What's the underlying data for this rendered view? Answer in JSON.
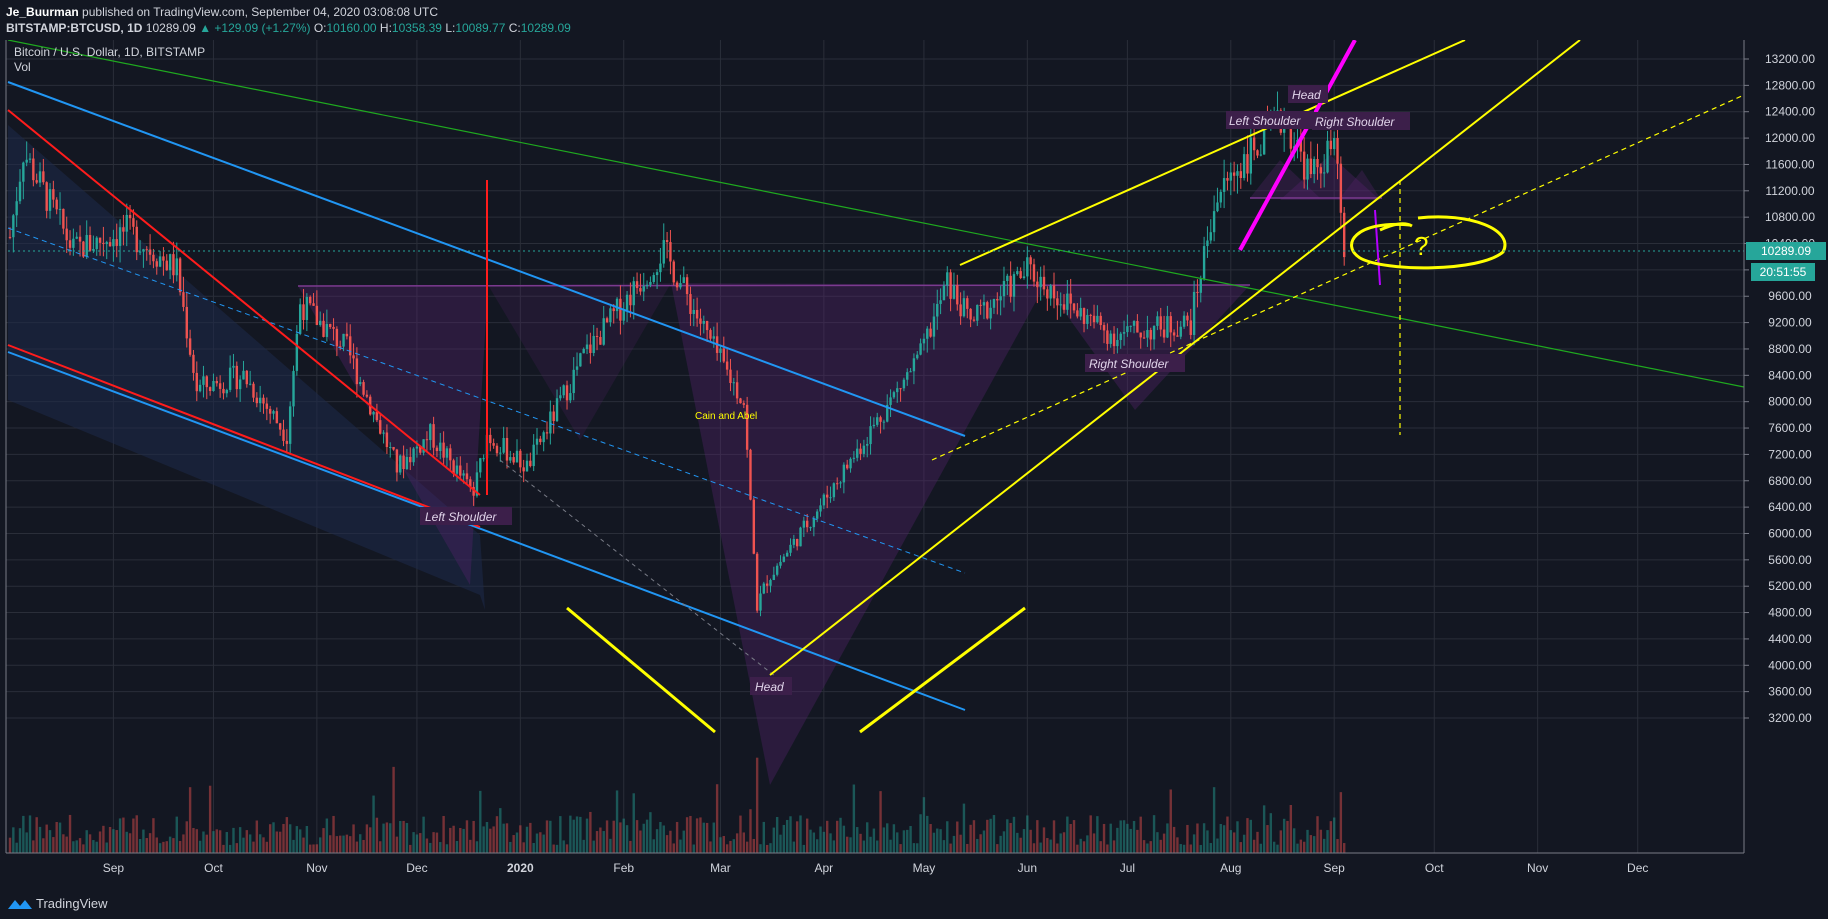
{
  "header": {
    "author": "Je_Buurman",
    "published_text": "published on TradingView.com, September 04, 2020 03:08:08 UTC",
    "symbol": "BITSTAMP:BTCUSD, 1D",
    "last": "10289.09",
    "change": "▲ +129.09 (+1.27%)",
    "o_label": "O:",
    "o": "10160.00",
    "h_label": "H:",
    "h": "10358.39",
    "l_label": "L:",
    "l": "10089.77",
    "c_label": "C:",
    "c": "10289.09"
  },
  "legend": {
    "title": "Bitcoin / U.S. Dollar, 1D, BITSTAMP",
    "vol": "Vol"
  },
  "price_badge": "10289.09",
  "countdown_badge": "20:51:55",
  "footer": {
    "brand": "TradingView"
  },
  "colors": {
    "up": "#26a69a",
    "down": "#ef5350",
    "bg": "#131722",
    "grid": "#2a2e39",
    "yellow": "#ffff00",
    "magenta": "#ff00ff",
    "blue": "#2196f3",
    "red": "#ff0000",
    "green": "#1faa1f"
  },
  "annotations": {
    "left_shoulder_1": "Left Shoulder",
    "head_1": "Head",
    "right_shoulder_1": "Right Shoulder",
    "cain_abel": "Cain and Abel",
    "left_shoulder_2": "Left Shoulder",
    "head_2": "Head",
    "right_shoulder_2": "Right Shoulder",
    "question": "?"
  },
  "chart_data": {
    "type": "candlestick",
    "title": "Bitcoin / U.S. Dollar, 1D, BITSTAMP",
    "y_ticks": [
      13200,
      12800,
      12400,
      12000,
      11600,
      11200,
      10800,
      10400,
      10000,
      9600,
      9200,
      8800,
      8400,
      8000,
      7600,
      7200,
      6800,
      6400,
      6000,
      5600,
      5200,
      4800,
      4400,
      4000,
      3600,
      3200
    ],
    "y_tick_labels": [
      "13200.00",
      "12800.00",
      "12400.00",
      "12000.00",
      "11600.00",
      "11200.00",
      "10800.00",
      "10400.00",
      "10000.00",
      "9600.00",
      "9200.00",
      "8800.00",
      "8400.00",
      "8000.00",
      "7600.00",
      "7200.00",
      "6800.00",
      "6400.00",
      "6000.00",
      "5600.00",
      "5200.00",
      "4800.00",
      "4400.00",
      "4000.00",
      "3600.00",
      "3200.00"
    ],
    "x_labels": [
      "Sep",
      "Oct",
      "Nov",
      "Dec",
      "2020",
      "Feb",
      "Mar",
      "Apr",
      "May",
      "Jun",
      "Jul",
      "Aug",
      "Sep",
      "Oct",
      "Nov",
      "Dec"
    ],
    "ylim": [
      3000,
      13400
    ],
    "keypoints": [
      [
        "2019-08-01",
        10500
      ],
      [
        "2019-08-05",
        11800
      ],
      [
        "2019-08-10",
        11300
      ],
      [
        "2019-08-20",
        10300
      ],
      [
        "2019-09-05",
        10600
      ],
      [
        "2019-09-20",
        10000
      ],
      [
        "2019-09-26",
        8200
      ],
      [
        "2019-10-10",
        8400
      ],
      [
        "2019-10-23",
        7500
      ],
      [
        "2019-10-27",
        9500
      ],
      [
        "2019-11-10",
        8800
      ],
      [
        "2019-11-25",
        7000
      ],
      [
        "2019-12-05",
        7500
      ],
      [
        "2019-12-18",
        6600
      ],
      [
        "2019-12-22",
        7500
      ],
      [
        "2020-01-03",
        7000
      ],
      [
        "2020-01-20",
        8700
      ],
      [
        "2020-02-13",
        10300
      ],
      [
        "2020-02-28",
        8800
      ],
      [
        "2020-03-08",
        8000
      ],
      [
        "2020-03-12",
        4900
      ],
      [
        "2020-03-15",
        5300
      ],
      [
        "2020-04-01",
        6500
      ],
      [
        "2020-04-30",
        8700
      ],
      [
        "2020-05-08",
        9800
      ],
      [
        "2020-05-15",
        9200
      ],
      [
        "2020-06-01",
        10000
      ],
      [
        "2020-06-15",
        9400
      ],
      [
        "2020-06-27",
        9000
      ],
      [
        "2020-07-20",
        9200
      ],
      [
        "2020-07-27",
        11000
      ],
      [
        "2020-08-02",
        11500
      ],
      [
        "2020-08-17",
        12300
      ],
      [
        "2020-08-25",
        11400
      ],
      [
        "2020-09-01",
        11900
      ],
      [
        "2020-09-04",
        10289
      ]
    ]
  }
}
